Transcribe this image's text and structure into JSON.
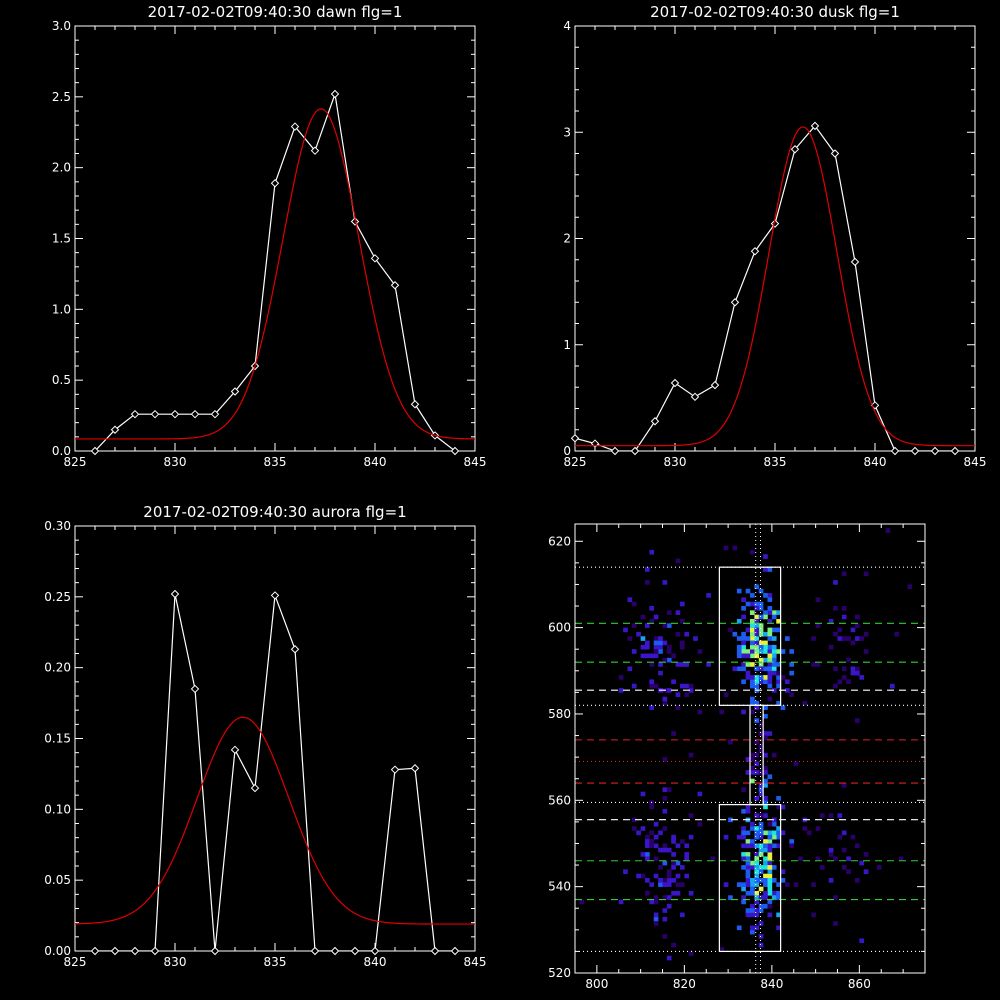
{
  "chart_data": [
    {
      "id": "dawn",
      "type": "line",
      "title": "2017-02-02T09:40:30 dawn flg=1",
      "xlim": [
        825,
        845
      ],
      "ylim": [
        0,
        3.0
      ],
      "xticks": [
        825,
        830,
        835,
        840,
        845
      ],
      "yticks": [
        0.0,
        0.5,
        1.0,
        1.5,
        2.0,
        2.5,
        3.0
      ],
      "ytick_labels": [
        "0.0",
        "0.5",
        "1.0",
        "1.5",
        "2.0",
        "2.5",
        "3.0"
      ],
      "series": [
        {
          "kind": "measured",
          "color": "#ffffff",
          "marker": "diamond",
          "x": [
            826,
            827,
            828,
            829,
            830,
            831,
            832,
            833,
            834,
            835,
            836,
            837,
            838,
            839,
            840,
            841,
            842,
            843,
            844
          ],
          "y": [
            0.0,
            0.15,
            0.26,
            0.26,
            0.26,
            0.26,
            0.26,
            0.42,
            0.6,
            1.89,
            2.29,
            2.12,
            2.52,
            1.62,
            1.36,
            1.17,
            0.33,
            0.11,
            0.0
          ]
        },
        {
          "kind": "fit",
          "color": "#e00000",
          "gaussian": {
            "amplitude": 2.33,
            "center": 837.3,
            "sigma": 1.9,
            "offset": 0.085
          }
        }
      ]
    },
    {
      "id": "dusk",
      "type": "line",
      "title": "2017-02-02T09:40:30 dusk flg=1",
      "xlim": [
        825,
        845
      ],
      "ylim": [
        0,
        4
      ],
      "xticks": [
        825,
        830,
        835,
        840,
        845
      ],
      "yticks": [
        0,
        1,
        2,
        3,
        4
      ],
      "ytick_labels": [
        "0",
        "1",
        "2",
        "3",
        "4"
      ],
      "series": [
        {
          "kind": "measured",
          "color": "#ffffff",
          "marker": "diamond",
          "x": [
            825,
            826,
            827,
            828,
            829,
            830,
            831,
            832,
            833,
            834,
            835,
            836,
            837,
            838,
            839,
            840,
            841,
            842,
            843,
            844
          ],
          "y": [
            0.12,
            0.07,
            0.0,
            0.0,
            0.28,
            0.64,
            0.51,
            0.62,
            1.4,
            1.88,
            2.14,
            2.84,
            3.06,
            2.8,
            1.78,
            0.43,
            0.0,
            0.0,
            0.0,
            0.0
          ]
        },
        {
          "kind": "fit",
          "color": "#e00000",
          "gaussian": {
            "amplitude": 3.0,
            "center": 836.4,
            "sigma": 1.7,
            "offset": 0.05
          }
        }
      ]
    },
    {
      "id": "aurora",
      "type": "line",
      "title": "2017-02-02T09:40:30 aurora flg=1",
      "xlim": [
        825,
        845
      ],
      "ylim": [
        0,
        0.3
      ],
      "xticks": [
        825,
        830,
        835,
        840,
        845
      ],
      "yticks": [
        0.0,
        0.05,
        0.1,
        0.15,
        0.2,
        0.25,
        0.3
      ],
      "ytick_labels": [
        "0.00",
        "0.05",
        "0.10",
        "0.15",
        "0.20",
        "0.25",
        "0.30"
      ],
      "series": [
        {
          "kind": "measured",
          "color": "#ffffff",
          "marker": "diamond",
          "x": [
            826,
            827,
            828,
            829,
            830,
            831,
            832,
            833,
            834,
            835,
            836,
            837,
            838,
            839,
            840,
            841,
            842,
            843,
            844
          ],
          "y": [
            0.0,
            0.0,
            0.0,
            0.0,
            0.252,
            0.185,
            0.0,
            0.142,
            0.115,
            0.251,
            0.213,
            0.0,
            0.0,
            0.0,
            0.0,
            0.128,
            0.129,
            0.0,
            0.0
          ]
        },
        {
          "kind": "fit",
          "color": "#e00000",
          "gaussian": {
            "amplitude": 0.146,
            "center": 833.4,
            "sigma": 2.3,
            "offset": 0.019
          }
        }
      ]
    },
    {
      "id": "heatmap",
      "type": "heatmap",
      "xlim": [
        795,
        875
      ],
      "ylim": [
        520,
        624
      ],
      "xticks": [
        800,
        820,
        840,
        860
      ],
      "yticks": [
        520,
        540,
        560,
        580,
        600,
        620
      ],
      "colorscale": [
        "#2a006a",
        "#3a16c8",
        "#1c5cf0",
        "#19a4f0",
        "#1ee6dc",
        "#7df07a",
        "#e8f040"
      ],
      "boxes": [
        {
          "x": [
            828,
            842
          ],
          "y": [
            582,
            614
          ]
        },
        {
          "x": [
            828,
            842
          ],
          "y": [
            525,
            559
          ]
        },
        {
          "x": [
            835,
            838
          ],
          "y": [
            559,
            582
          ]
        }
      ],
      "hlines": [
        {
          "y": 614,
          "color": "#ffffff",
          "style": "dotted"
        },
        {
          "y": 601,
          "color": "#33cc33",
          "style": "dashed"
        },
        {
          "y": 592,
          "color": "#33cc33",
          "style": "dashed"
        },
        {
          "y": 585.5,
          "color": "#ffffff",
          "style": "dashed"
        },
        {
          "y": 582,
          "color": "#ffffff",
          "style": "dotted"
        },
        {
          "y": 574,
          "color": "#dd2222",
          "style": "dashed"
        },
        {
          "y": 569,
          "color": "#cc2222",
          "style": "dotted"
        },
        {
          "y": 564,
          "color": "#dd2222",
          "style": "dashed"
        },
        {
          "y": 559.5,
          "color": "#ffffff",
          "style": "dotted"
        },
        {
          "y": 555.5,
          "color": "#ffffff",
          "style": "dashed"
        },
        {
          "y": 546,
          "color": "#33cc33",
          "style": "dashed"
        },
        {
          "y": 537,
          "color": "#33cc33",
          "style": "dashed"
        },
        {
          "y": 525,
          "color": "#ffffff",
          "style": "dotted"
        }
      ],
      "vlines": [
        {
          "x": 836.3,
          "color": "#ffffff",
          "style": "dotted"
        },
        {
          "x": 837.4,
          "color": "#ffffff",
          "style": "dotted"
        }
      ],
      "clusters": [
        {
          "x": 837,
          "y": 596,
          "sx": 2.6,
          "sy": 7,
          "n": 230,
          "w": 5.2
        },
        {
          "x": 837,
          "y": 545,
          "sx": 2.6,
          "sy": 7,
          "n": 230,
          "w": 5.0
        },
        {
          "x": 814,
          "y": 594,
          "sx": 3.5,
          "sy": 8,
          "n": 90,
          "w": 3.0
        },
        {
          "x": 814,
          "y": 545,
          "sx": 3.5,
          "sy": 8,
          "n": 90,
          "w": 3.0
        },
        {
          "x": 855,
          "y": 596,
          "sx": 5,
          "sy": 7,
          "n": 35,
          "w": 2.0
        },
        {
          "x": 855,
          "y": 545,
          "sx": 5,
          "sy": 7,
          "n": 35,
          "w": 2.0
        },
        {
          "x": 837,
          "y": 570,
          "sx": 1.6,
          "sy": 6,
          "n": 30,
          "w": 2.2
        },
        {
          "x": 835,
          "y": 572,
          "sx": 30,
          "sy": 40,
          "n": 60,
          "w": 1.0
        }
      ]
    }
  ]
}
